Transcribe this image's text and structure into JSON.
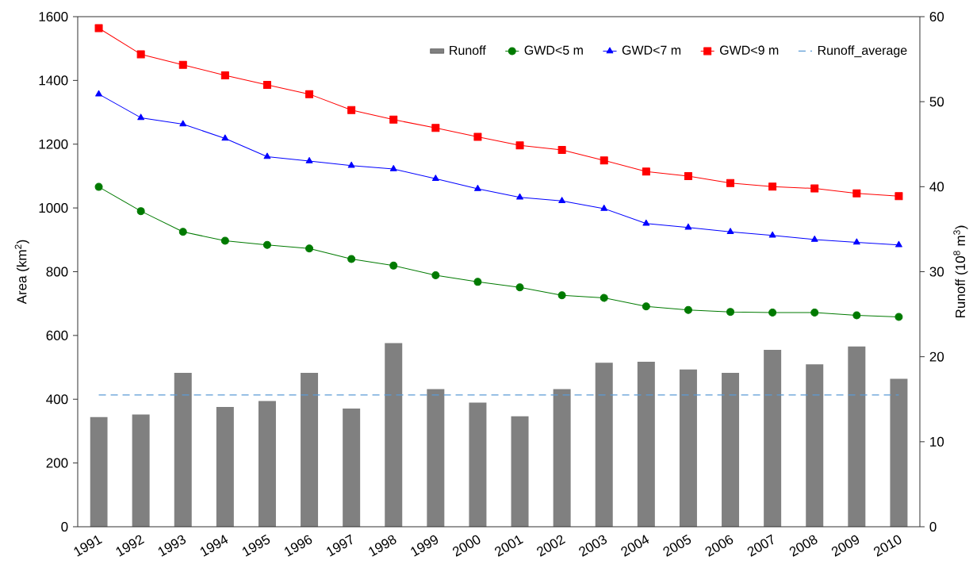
{
  "chart_data": {
    "type": "line",
    "categories": [
      "1991",
      "1992",
      "1993",
      "1994",
      "1995",
      "1996",
      "1997",
      "1998",
      "1999",
      "2000",
      "2001",
      "2002",
      "2003",
      "2004",
      "2005",
      "2006",
      "2007",
      "2008",
      "2009",
      "2010"
    ],
    "series": [
      {
        "name": "Runoff",
        "type": "bar",
        "axis": "y2",
        "color": "#808080",
        "values": [
          12.9,
          13.2,
          18.1,
          14.1,
          14.8,
          18.1,
          13.9,
          21.6,
          16.2,
          14.6,
          13.0,
          16.2,
          19.3,
          19.4,
          18.5,
          18.1,
          20.8,
          19.1,
          21.2,
          17.4
        ]
      },
      {
        "name": "GWD<5 m",
        "marker": "circle",
        "color": "#007a00",
        "values": [
          1066,
          990,
          925,
          897,
          884,
          873,
          840,
          819,
          789,
          768,
          751,
          726,
          718,
          691,
          680,
          674,
          672,
          672,
          663,
          658
        ]
      },
      {
        "name": "GWD<7 m",
        "marker": "triangle",
        "color": "#0000ff",
        "values": [
          1357,
          1283,
          1263,
          1218,
          1161,
          1147,
          1133,
          1122,
          1092,
          1060,
          1033,
          1022,
          998,
          951,
          939,
          925,
          914,
          901,
          892,
          884
        ]
      },
      {
        "name": "GWD<9 m",
        "marker": "square",
        "color": "#ff0000",
        "values": [
          1564,
          1482,
          1449,
          1416,
          1386,
          1357,
          1307,
          1277,
          1251,
          1223,
          1196,
          1182,
          1149,
          1114,
          1100,
          1078,
          1067,
          1061,
          1046,
          1037
        ]
      }
    ],
    "ylabel": "Area (km$^{2}$)",
    "y2label": "Runoff (10$^{8}$ m$^{3}$)",
    "ylim": [
      0,
      1600
    ],
    "yticks": [
      0,
      200,
      400,
      600,
      800,
      1000,
      1200,
      1400,
      1600
    ],
    "y2lim": [
      0,
      60
    ],
    "y2ticks": [
      0,
      10,
      20,
      30,
      40,
      50,
      60
    ],
    "legend": "top right",
    "ref_lines": [
      {
        "axis": "y2",
        "value": 15.5,
        "label": "Runoff_average",
        "color": "#5b9bd5",
        "line_style": "dashed"
      }
    ]
  }
}
